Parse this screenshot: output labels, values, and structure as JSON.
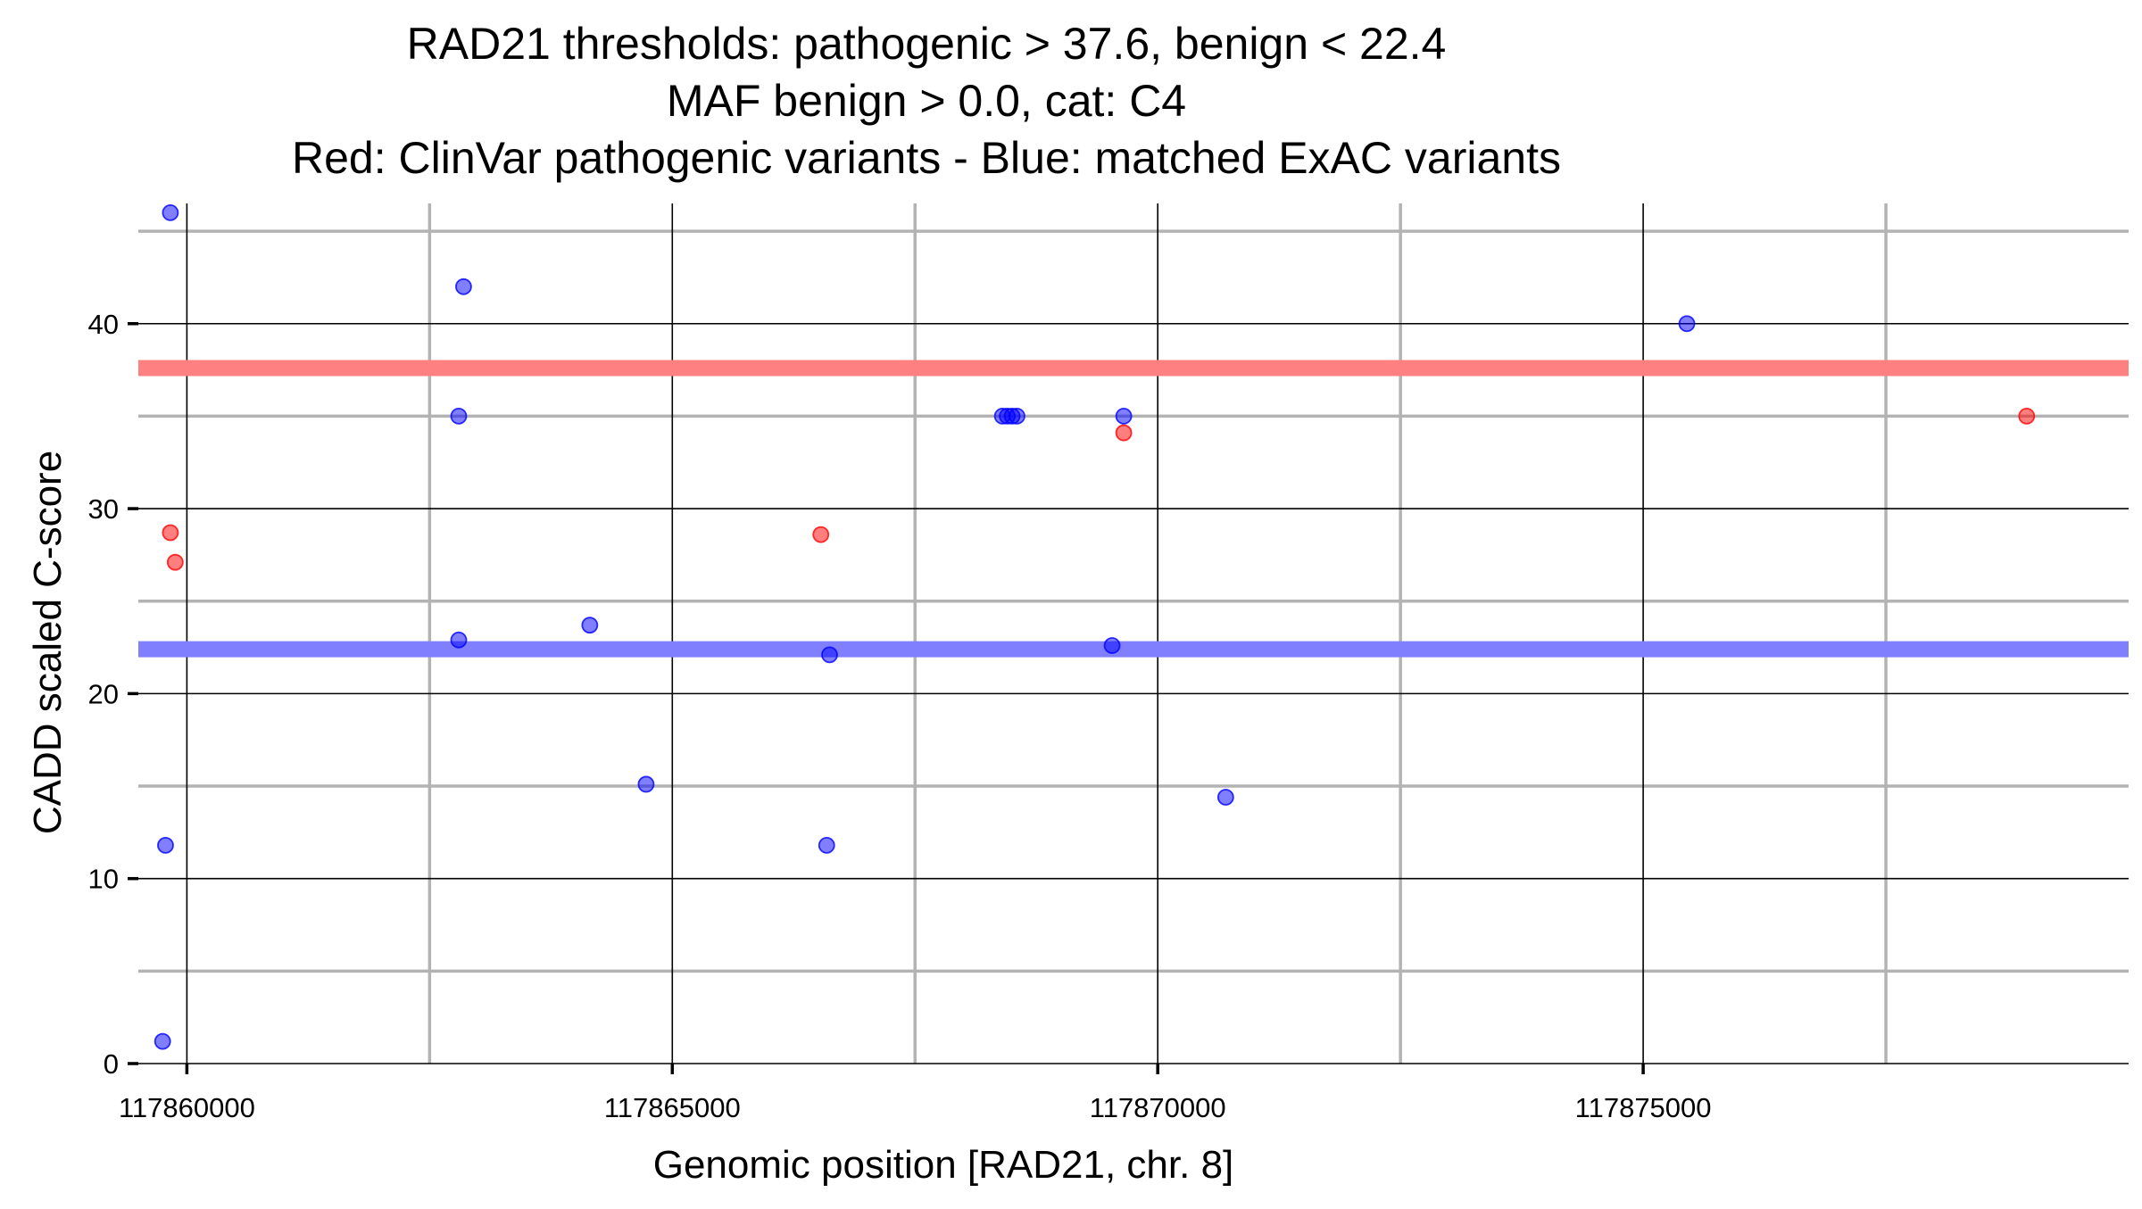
{
  "chart_data": {
    "type": "scatter",
    "title_lines": [
      "RAD21 thresholds: pathogenic > 37.6, benign < 22.4",
      "MAF benign > 0.0, cat: C4",
      "Red: ClinVar pathogenic variants - Blue: matched ExAC variants"
    ],
    "xlabel": "Genomic position [RAD21, chr. 8]",
    "ylabel": "CADD scaled C-score",
    "xlim": [
      117859500,
      117880000
    ],
    "ylim": [
      0,
      46.5
    ],
    "x_ticks": [
      {
        "value": 117860000,
        "label": "117860000"
      },
      {
        "value": 117865000,
        "label": "117865000"
      },
      {
        "value": 117870000,
        "label": "117870000"
      },
      {
        "value": 117875000,
        "label": "117875000"
      }
    ],
    "x_minor_gridlines": [
      117862500,
      117867500,
      117872500,
      117877500
    ],
    "y_ticks": [
      {
        "value": 0,
        "label": "0"
      },
      {
        "value": 10,
        "label": "10"
      },
      {
        "value": 20,
        "label": "20"
      },
      {
        "value": 30,
        "label": "30"
      },
      {
        "value": 40,
        "label": "40"
      }
    ],
    "y_minor_gridlines": [
      5,
      15,
      25,
      35,
      45
    ],
    "grid": true,
    "thresholds": [
      {
        "value": 37.6,
        "color": "#ff8080"
      },
      {
        "value": 22.4,
        "color": "#8080ff"
      }
    ],
    "series": [
      {
        "color": "#ff0000",
        "points": [
          {
            "x": 117859830,
            "y": 28.7
          },
          {
            "x": 117859880,
            "y": 27.1
          },
          {
            "x": 117866530,
            "y": 28.6
          },
          {
            "x": 117869650,
            "y": 34.1
          },
          {
            "x": 117878950,
            "y": 35.0
          }
        ]
      },
      {
        "color": "#0000ff",
        "points": [
          {
            "x": 117859830,
            "y": 46.0
          },
          {
            "x": 117859780,
            "y": 11.8
          },
          {
            "x": 117859750,
            "y": 1.2
          },
          {
            "x": 117862850,
            "y": 42.0
          },
          {
            "x": 117862800,
            "y": 35.0
          },
          {
            "x": 117862800,
            "y": 22.9
          },
          {
            "x": 117864150,
            "y": 23.7
          },
          {
            "x": 117864730,
            "y": 15.1
          },
          {
            "x": 117866620,
            "y": 22.1
          },
          {
            "x": 117866590,
            "y": 11.8
          },
          {
            "x": 117868400,
            "y": 35.0
          },
          {
            "x": 117868450,
            "y": 35.0
          },
          {
            "x": 117868500,
            "y": 35.0
          },
          {
            "x": 117868550,
            "y": 35.0
          },
          {
            "x": 117869650,
            "y": 35.0
          },
          {
            "x": 117869530,
            "y": 22.6
          },
          {
            "x": 117870700,
            "y": 14.4
          },
          {
            "x": 117875450,
            "y": 40.0
          }
        ]
      }
    ]
  }
}
